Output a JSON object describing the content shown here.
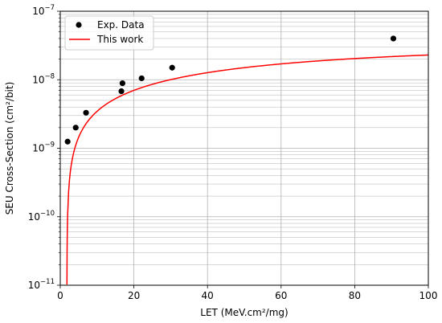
{
  "chart_data": {
    "type": "scatter",
    "title": "",
    "xlabel": "LET (MeV.cm²/mg)",
    "ylabel": "SEU Cross-Section (cm²/bit)",
    "xlim": [
      0,
      100
    ],
    "ylim": [
      1e-11,
      1e-07
    ],
    "y_scale": "log",
    "grid": "on (major and minor)",
    "legend_position": "top-left",
    "x_ticks": [
      "0",
      "20",
      "40",
      "60",
      "80",
      "100"
    ],
    "y_ticks": [
      {
        "value": 1e-11,
        "base": "10",
        "exp": "−11"
      },
      {
        "value": 1e-10,
        "base": "10",
        "exp": "−10"
      },
      {
        "value": 1e-09,
        "base": "10",
        "exp": "−9"
      },
      {
        "value": 1e-08,
        "base": "10",
        "exp": "−8"
      },
      {
        "value": 1e-07,
        "base": "10",
        "exp": "−7"
      }
    ],
    "series": [
      {
        "name": "Exp. Data",
        "kind": "scatter",
        "color": "#000000",
        "points": [
          {
            "x": 2.0,
            "y": 1.25e-09
          },
          {
            "x": 4.2,
            "y": 2e-09
          },
          {
            "x": 7.0,
            "y": 3.3e-09
          },
          {
            "x": 16.6,
            "y": 6.8e-09
          },
          {
            "x": 16.9,
            "y": 8.9e-09
          },
          {
            "x": 22.1,
            "y": 1.05e-08
          },
          {
            "x": 30.4,
            "y": 1.5e-08
          },
          {
            "x": 90.5,
            "y": 4e-08
          }
        ]
      },
      {
        "name": "This work",
        "kind": "line",
        "color": "#ff0000",
        "model": "y = A·(1 − exp(−(x − x0)/W))^s",
        "params": {
          "A": 3.2e-08,
          "x0": 1.8,
          "W": 80,
          "s": 0.955
        }
      }
    ]
  }
}
